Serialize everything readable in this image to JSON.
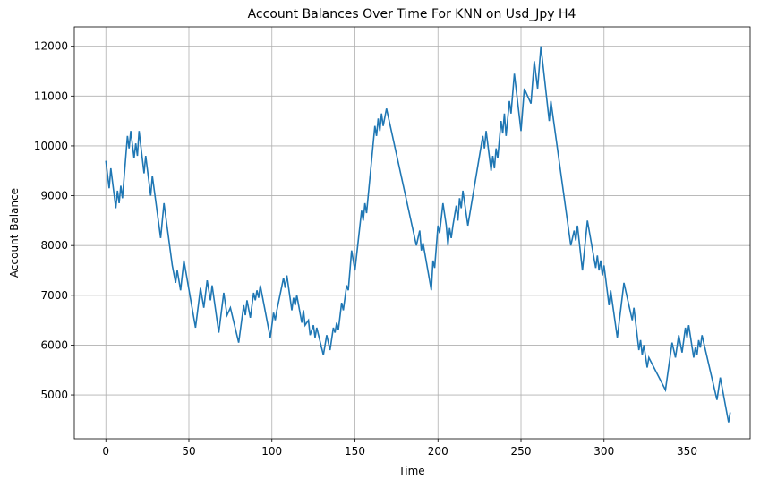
{
  "chart_data": {
    "type": "line",
    "title": "Account Balances Over Time For KNN on Usd_Jpy H4",
    "x_label": "Time",
    "y_label": "Account Balance",
    "color": "#1f77b4",
    "grid": true,
    "xlim": [
      -19,
      388
    ],
    "ylim": [
      4120,
      12390
    ],
    "xticks": [
      0,
      50,
      100,
      150,
      200,
      250,
      300,
      350
    ],
    "yticks": [
      5000,
      6000,
      7000,
      8000,
      9000,
      10000,
      11000,
      12000
    ],
    "x": [
      0,
      2,
      3,
      6,
      7,
      8,
      9,
      10,
      13,
      14,
      15,
      17,
      18,
      19,
      20,
      23,
      24,
      27,
      28,
      33,
      35,
      40,
      42,
      43,
      45,
      47,
      54,
      57,
      59,
      61,
      63,
      64,
      68,
      71,
      73,
      75,
      80,
      83,
      84,
      85,
      87,
      89,
      90,
      91,
      92,
      93,
      99,
      101,
      102,
      103,
      107,
      108,
      109,
      112,
      113,
      114,
      115,
      118,
      119,
      120,
      122,
      123,
      125,
      126,
      127,
      131,
      133,
      135,
      137,
      138,
      139,
      140,
      142,
      143,
      145,
      146,
      148,
      150,
      154,
      155,
      156,
      157,
      162,
      163,
      164,
      165,
      166,
      167,
      169,
      187,
      189,
      190,
      191,
      196,
      197,
      198,
      200,
      201,
      203,
      205,
      206,
      207,
      208,
      209,
      211,
      212,
      213,
      214,
      215,
      218,
      227,
      228,
      229,
      232,
      233,
      234,
      235,
      236,
      238,
      239,
      240,
      241,
      243,
      244,
      246,
      250,
      252,
      256,
      258,
      260,
      262,
      267,
      268,
      280,
      282,
      283,
      284,
      287,
      290,
      295,
      296,
      297,
      298,
      299,
      300,
      303,
      304,
      308,
      312,
      317,
      318,
      321,
      322,
      323,
      324,
      326,
      327,
      337,
      341,
      343,
      345,
      347,
      349,
      350,
      351,
      354,
      355,
      356,
      357,
      358,
      359,
      368,
      370,
      375,
      376
    ],
    "values": [
      9700,
      9150,
      9550,
      8750,
      9100,
      8850,
      9200,
      8950,
      10200,
      9950,
      10300,
      9750,
      10050,
      9800,
      10300,
      9450,
      9800,
      9000,
      9400,
      8150,
      8850,
      7600,
      7250,
      7500,
      7100,
      7700,
      6350,
      7150,
      6750,
      7300,
      6900,
      7200,
      6250,
      7050,
      6600,
      6750,
      6050,
      6800,
      6600,
      6900,
      6550,
      7050,
      6900,
      7100,
      6950,
      7200,
      6150,
      6650,
      6500,
      6700,
      7350,
      7150,
      7400,
      6700,
      6950,
      6800,
      7000,
      6450,
      6700,
      6400,
      6500,
      6200,
      6400,
      6150,
      6350,
      5800,
      6200,
      5900,
      6350,
      6250,
      6450,
      6300,
      6850,
      6700,
      7200,
      7100,
      7900,
      7500,
      8700,
      8500,
      8850,
      8650,
      10400,
      10200,
      10550,
      10300,
      10650,
      10400,
      10750,
      8000,
      8300,
      7900,
      8050,
      7100,
      7700,
      7550,
      8400,
      8250,
      8850,
      8400,
      8000,
      8350,
      8150,
      8400,
      8800,
      8500,
      8950,
      8750,
      9100,
      8400,
      10200,
      9950,
      10300,
      9500,
      9800,
      9550,
      9950,
      9750,
      10500,
      10250,
      10650,
      10200,
      10900,
      10650,
      11450,
      10300,
      11150,
      10850,
      11700,
      11150,
      12000,
      10500,
      10900,
      8000,
      8300,
      8100,
      8400,
      7500,
      8500,
      7550,
      7800,
      7500,
      7700,
      7400,
      7600,
      6800,
      7100,
      6150,
      7250,
      6500,
      6750,
      5900,
      6100,
      5800,
      6000,
      5550,
      5750,
      5100,
      6050,
      5750,
      6200,
      5850,
      6350,
      6150,
      6400,
      5750,
      5950,
      5800,
      6100,
      5950,
      6200,
      4900,
      5350,
      4450,
      4650
    ]
  }
}
